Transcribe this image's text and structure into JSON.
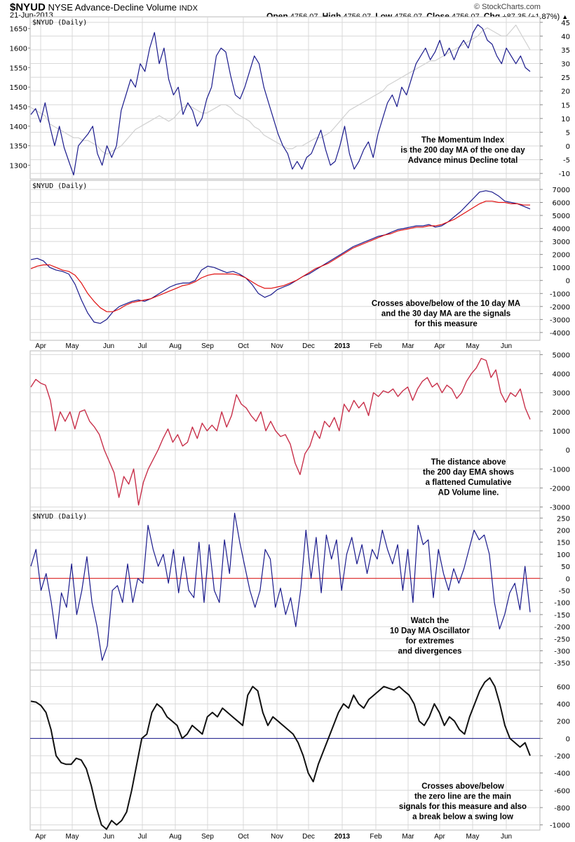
{
  "header": {
    "symbol": "$NYUD",
    "name": "NYSE Advance-Decline Volume",
    "exchange": "INDX",
    "date": "21-Jun-2013",
    "copyright": "© StockCharts.com",
    "open_label": "Open",
    "open_value": "4756.07",
    "high_label": "High",
    "high_value": "4756.07",
    "low_label": "Low",
    "low_value": "4756.07",
    "close_label": "Close",
    "close_value": "4756.07",
    "chg_label": "Chg",
    "chg_value": "+87.35 (+1.87%)",
    "up_arrow": "▲"
  },
  "months": [
    "Apr",
    "May",
    "Jun",
    "Jul",
    "Aug",
    "Sep",
    "Oct",
    "Nov",
    "Dec",
    "2013",
    "Feb",
    "Mar",
    "Apr",
    "May",
    "Jun"
  ],
  "colors": {
    "navy": "#1a1a8c",
    "gray": "#d0d0d0",
    "red": "#e01010",
    "crimson": "#c8304a",
    "black": "#111111",
    "grid": "#d8d8d8"
  },
  "chart_data": [
    {
      "type": "line",
      "panel_label": "$NYUD (Daily)",
      "annotation": [
        "The Momentum Index",
        "is the 200 day MA of the one day",
        "Advance minus Decline total"
      ],
      "left_axis": {
        "ticks": [
          "1650",
          "1600",
          "1550",
          "1500",
          "1450",
          "1400",
          "1350",
          "1300"
        ],
        "range": [
          1265,
          1680
        ]
      },
      "right_axis": {
        "ticks": [
          "45",
          "40",
          "35",
          "30",
          "25",
          "20",
          "15",
          "10",
          "5",
          "0",
          "-5",
          "-10"
        ],
        "range": [
          -12,
          47
        ]
      },
      "series": [
        {
          "name": "Price (navy, left axis)",
          "axis": "left",
          "color": "navy",
          "values": [
            1430,
            1445,
            1410,
            1460,
            1400,
            1350,
            1400,
            1345,
            1310,
            1275,
            1350,
            1365,
            1380,
            1400,
            1330,
            1300,
            1350,
            1320,
            1350,
            1440,
            1480,
            1520,
            1500,
            1560,
            1540,
            1600,
            1640,
            1560,
            1600,
            1520,
            1480,
            1500,
            1430,
            1460,
            1440,
            1400,
            1420,
            1470,
            1500,
            1580,
            1600,
            1590,
            1530,
            1480,
            1470,
            1500,
            1540,
            1580,
            1560,
            1500,
            1460,
            1420,
            1380,
            1350,
            1330,
            1290,
            1310,
            1290,
            1320,
            1330,
            1360,
            1390,
            1340,
            1300,
            1310,
            1350,
            1400,
            1330,
            1290,
            1310,
            1340,
            1360,
            1320,
            1380,
            1420,
            1460,
            1480,
            1450,
            1500,
            1480,
            1520,
            1560,
            1580,
            1600,
            1570,
            1590,
            1620,
            1580,
            1600,
            1570,
            1600,
            1620,
            1600,
            1640,
            1660,
            1650,
            1620,
            1610,
            1580,
            1560,
            1600,
            1580,
            1560,
            1580,
            1550,
            1540
          ]
        },
        {
          "name": "Momentum Index (gray, right axis)",
          "axis": "right",
          "color": "gray",
          "values": [
            14,
            13,
            12,
            11,
            8,
            7,
            6,
            5,
            4,
            3,
            3,
            2,
            2,
            1,
            0,
            -2,
            -3,
            -2,
            -1,
            0,
            2,
            4,
            6,
            7,
            8,
            9,
            10,
            11,
            10,
            9,
            10,
            12,
            14,
            15,
            14,
            13,
            12,
            12,
            13,
            14,
            15,
            15,
            14,
            12,
            11,
            10,
            9,
            7,
            6,
            4,
            3,
            2,
            1,
            0,
            -1,
            -1,
            0,
            0,
            1,
            2,
            3,
            3,
            4,
            5,
            7,
            9,
            11,
            13,
            14,
            15,
            16,
            17,
            18,
            19,
            20,
            22,
            23,
            24,
            25,
            26,
            27,
            28,
            29,
            30,
            31,
            31,
            32,
            33,
            34,
            35,
            36,
            37,
            38,
            39,
            40,
            42,
            43,
            42,
            41,
            40,
            40,
            42,
            44,
            41,
            38,
            35
          ]
        }
      ]
    },
    {
      "type": "line",
      "panel_label": "$NYUD (Daily)",
      "annotation": [
        "Crosses above/below of the 10 day MA",
        "and the 30 day MA are the signals",
        "for this measure"
      ],
      "right_axis": {
        "ticks": [
          "7000",
          "6000",
          "5000",
          "4000",
          "3000",
          "2000",
          "1000",
          "0",
          "-1000",
          "-2000",
          "-3000",
          "-4000"
        ],
        "range": [
          -4600,
          7700
        ]
      },
      "series": [
        {
          "name": "10 day MA (navy)",
          "color": "navy",
          "values": [
            1600,
            1700,
            1500,
            1000,
            800,
            700,
            500,
            -300,
            -1500,
            -2500,
            -3200,
            -3300,
            -3000,
            -2400,
            -2000,
            -1800,
            -1600,
            -1500,
            -1600,
            -1400,
            -1100,
            -800,
            -500,
            -300,
            -200,
            -200,
            0,
            800,
            1100,
            1000,
            800,
            600,
            700,
            500,
            200,
            -300,
            -1000,
            -1300,
            -1100,
            -700,
            -500,
            -300,
            0,
            300,
            500,
            800,
            1100,
            1400,
            1700,
            2000,
            2300,
            2600,
            2800,
            3000,
            3200,
            3400,
            3500,
            3700,
            3900,
            4000,
            4100,
            4200,
            4200,
            4300,
            4100,
            4200,
            4500,
            4900,
            5300,
            5800,
            6300,
            6800,
            6900,
            6800,
            6500,
            6100,
            6000,
            5900,
            5700,
            5500
          ]
        },
        {
          "name": "30 day MA (red)",
          "color": "red",
          "values": [
            900,
            1100,
            1200,
            1200,
            1000,
            800,
            700,
            400,
            -200,
            -1000,
            -1600,
            -2100,
            -2400,
            -2400,
            -2200,
            -1900,
            -1700,
            -1600,
            -1500,
            -1400,
            -1200,
            -1000,
            -800,
            -600,
            -400,
            -300,
            -100,
            200,
            400,
            500,
            500,
            500,
            500,
            400,
            200,
            -100,
            -400,
            -600,
            -600,
            -500,
            -400,
            -200,
            0,
            300,
            600,
            900,
            1100,
            1300,
            1600,
            1900,
            2200,
            2500,
            2700,
            2900,
            3100,
            3300,
            3500,
            3600,
            3800,
            3900,
            4000,
            4100,
            4100,
            4200,
            4200,
            4300,
            4500,
            4700,
            5000,
            5300,
            5600,
            5900,
            6100,
            6100,
            6000,
            6000,
            5900,
            5900,
            5800,
            5800
          ]
        }
      ]
    },
    {
      "type": "line",
      "panel_label": "",
      "annotation": [
        "The distance above",
        "the 200 day EMA shows",
        "a flattened Cumulative",
        "AD Volume line."
      ],
      "right_axis": {
        "ticks": [
          "5000",
          "4000",
          "3000",
          "2000",
          "1000",
          "0",
          "-1000",
          "-2000",
          "-3000"
        ],
        "range": [
          -3200,
          5200
        ]
      },
      "series": [
        {
          "name": "Distance above 200 day EMA (crimson)",
          "color": "crimson",
          "values": [
            3300,
            3700,
            3500,
            3400,
            2600,
            1000,
            2000,
            1500,
            2000,
            1100,
            2000,
            2100,
            1500,
            1200,
            800,
            0,
            -600,
            -1200,
            -2500,
            -1400,
            -1800,
            -1000,
            -2900,
            -1700,
            -1000,
            -500,
            0,
            600,
            1100,
            400,
            800,
            200,
            400,
            1200,
            600,
            1400,
            1000,
            1300,
            1000,
            2000,
            1200,
            1800,
            2900,
            2400,
            2200,
            1800,
            1500,
            2000,
            1000,
            1500,
            1000,
            700,
            800,
            300,
            -700,
            -1300,
            -200,
            200,
            1000,
            600,
            1500,
            1200,
            1700,
            1000,
            2400,
            2000,
            2600,
            2200,
            2500,
            1800,
            3000,
            2800,
            3100,
            3000,
            3200,
            2800,
            3100,
            3300,
            2600,
            3200,
            3600,
            3800,
            3300,
            3500,
            3000,
            3400,
            3200,
            2700,
            3000,
            3600,
            4000,
            4300,
            4800,
            4700,
            3800,
            4200,
            3000,
            2500,
            3000,
            2800,
            3200,
            2200,
            1600
          ]
        }
      ]
    },
    {
      "type": "line",
      "panel_label": "$NYUD (Daily)",
      "annotation": [
        "Watch the",
        "10 Day MA Oscillator",
        "for extremes",
        "and divergences"
      ],
      "right_axis": {
        "ticks": [
          "250",
          "200",
          "150",
          "100",
          "50",
          "0",
          "-50",
          "-100",
          "-150",
          "-200",
          "-250",
          "-300",
          "-350"
        ],
        "range": [
          -380,
          280
        ]
      },
      "series": [
        {
          "name": "10 Day MA Oscillator (navy)",
          "color": "navy",
          "values": [
            50,
            120,
            -50,
            20,
            -100,
            -250,
            -60,
            -120,
            60,
            -150,
            -50,
            90,
            -100,
            -200,
            -340,
            -280,
            -50,
            -30,
            -100,
            60,
            -100,
            0,
            -20,
            220,
            120,
            50,
            100,
            -20,
            120,
            -60,
            90,
            -50,
            -80,
            150,
            -100,
            140,
            -50,
            -100,
            160,
            20,
            270,
            150,
            50,
            -50,
            -120,
            -50,
            120,
            80,
            -120,
            -40,
            -150,
            -80,
            -200,
            -40,
            200,
            0,
            170,
            -60,
            180,
            80,
            160,
            -50,
            100,
            170,
            60,
            140,
            20,
            120,
            80,
            200,
            120,
            60,
            140,
            -50,
            120,
            -100,
            220,
            140,
            160,
            -80,
            120,
            20,
            -50,
            40,
            -20,
            40,
            120,
            200,
            160,
            180,
            100,
            -100,
            -210,
            -150,
            -60,
            -20,
            -130,
            50,
            -140
          ]
        }
      ],
      "reference_line": {
        "value": 0,
        "color": "red"
      }
    },
    {
      "type": "line",
      "panel_label": "",
      "annotation": [
        "Crosses above/below",
        "the zero line are the main",
        "signals for this measure and also",
        "a break below a swing low"
      ],
      "right_axis": {
        "ticks": [
          "600",
          "400",
          "200",
          "0",
          "-200",
          "-400",
          "-600",
          "-800",
          "-1000"
        ],
        "range": [
          -1060,
          790
        ]
      },
      "series": [
        {
          "name": "Oscillator (black)",
          "color": "black",
          "values": [
            430,
            420,
            380,
            300,
            100,
            -200,
            -280,
            -300,
            -300,
            -230,
            -250,
            -350,
            -550,
            -800,
            -1000,
            -1050,
            -950,
            -1000,
            -950,
            -850,
            -600,
            -300,
            0,
            50,
            300,
            400,
            350,
            250,
            200,
            150,
            0,
            50,
            150,
            100,
            50,
            250,
            300,
            250,
            350,
            300,
            250,
            200,
            150,
            500,
            600,
            550,
            300,
            150,
            250,
            200,
            150,
            100,
            50,
            -50,
            -200,
            -400,
            -500,
            -300,
            -150,
            0,
            150,
            300,
            400,
            350,
            500,
            400,
            350,
            450,
            500,
            550,
            600,
            580,
            560,
            600,
            550,
            500,
            400,
            200,
            150,
            250,
            400,
            300,
            150,
            250,
            200,
            100,
            50,
            250,
            400,
            550,
            650,
            700,
            600,
            400,
            150,
            0,
            -50,
            -100,
            -50,
            -200
          ]
        }
      ],
      "reference_line": {
        "value": 0,
        "color": "navy"
      }
    }
  ]
}
